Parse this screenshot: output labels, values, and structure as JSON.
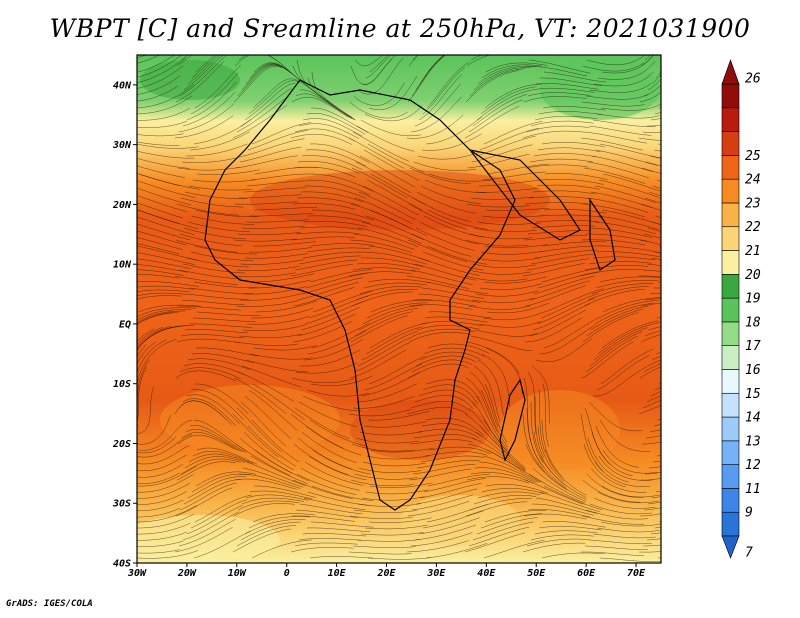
{
  "title": "WBPT [C] and Sreamline at 250hPa, VT: 2021031900",
  "credit": "GrADS: IGES/COLA",
  "map": {
    "lon_labels": [
      "30W",
      "20W",
      "10W",
      "0",
      "10E",
      "20E",
      "30E",
      "40E",
      "50E",
      "60E",
      "70E"
    ],
    "lat_labels": [
      "40N",
      "30N",
      "20N",
      "10N",
      "EQ",
      "10S",
      "20S",
      "30S",
      "40S"
    ],
    "lon_range": [
      -30,
      75
    ],
    "lat_range": [
      -40,
      45
    ]
  },
  "colorbar": {
    "labels": [
      "7",
      "9",
      "11",
      "12",
      "13",
      "14",
      "15",
      "16",
      "17",
      "18",
      "19",
      "20",
      "21",
      "22",
      "23",
      "24",
      "25",
      "26"
    ],
    "colors": [
      "#2a74d8",
      "#3d86e8",
      "#579cf2",
      "#76b2f7",
      "#9ccbfb",
      "#c4e2fd",
      "#e9f7ff",
      "#c9efc2",
      "#92dc86",
      "#5ac45a",
      "#3aa83e",
      "#faf0a0",
      "#fad678",
      "#f9b247",
      "#f68b23",
      "#ef6419",
      "#d83c12",
      "#b91b0d",
      "#900d0a"
    ],
    "arrow_top_color": "#900d0a",
    "arrow_bottom_color": "#1f63c9"
  }
}
